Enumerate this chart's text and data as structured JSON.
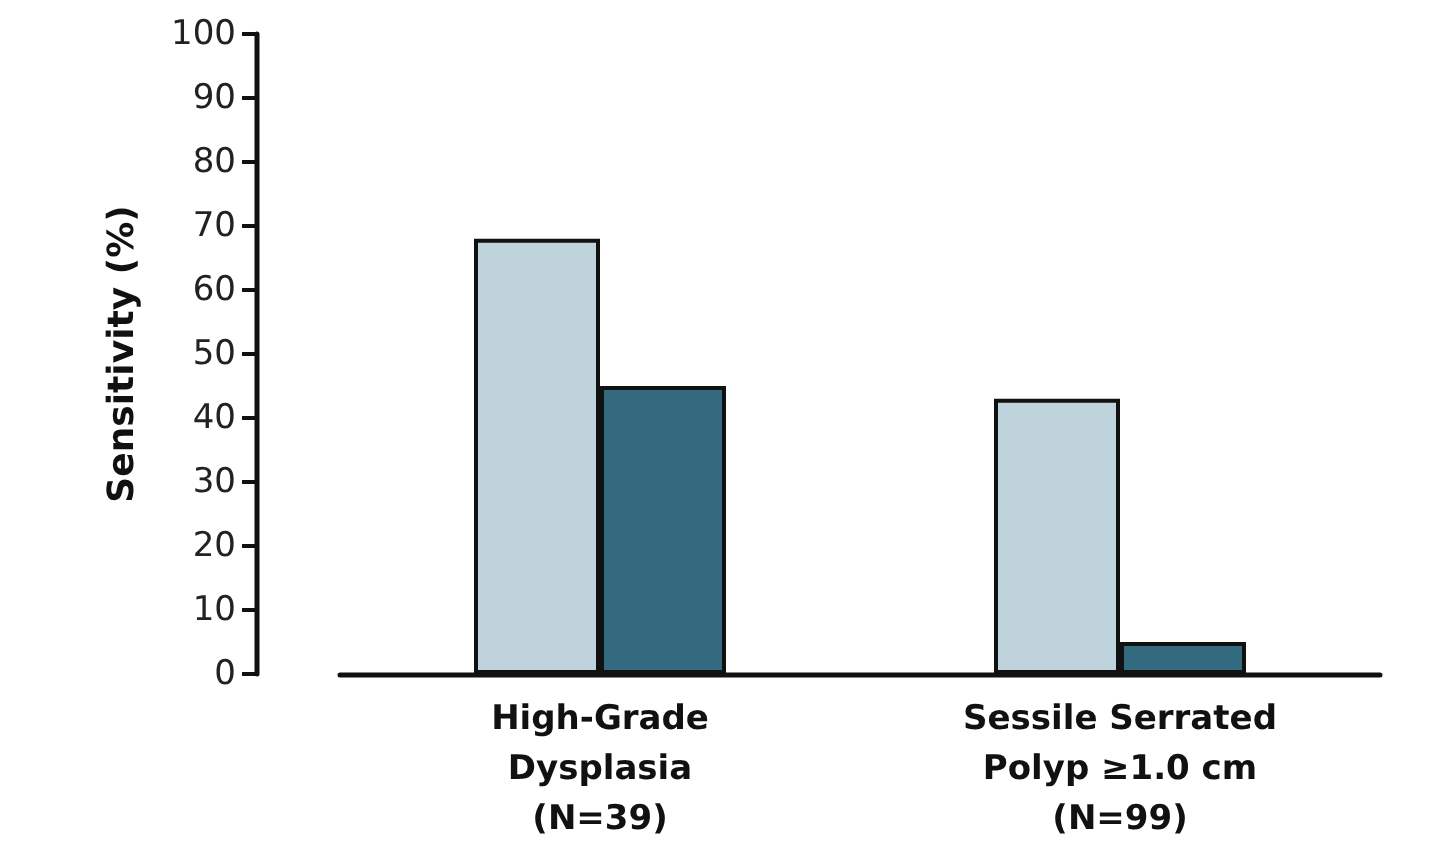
{
  "chart_data": {
    "type": "bar",
    "ylabel": "Sensitivity (%)",
    "categories": [
      "High-Grade\nDysplasia\n(N=39)",
      "Sessile Serrated\nPolyp ≥1.0 cm\n(N=99)"
    ],
    "series": [
      {
        "color": "#bfd3dc",
        "values": [
          68,
          43
        ]
      },
      {
        "color": "#336a80",
        "values": [
          45,
          5
        ]
      }
    ],
    "ylim": [
      0,
      100
    ],
    "yticks": [
      0,
      10,
      20,
      30,
      40,
      50,
      60,
      70,
      80,
      90,
      100
    ]
  }
}
